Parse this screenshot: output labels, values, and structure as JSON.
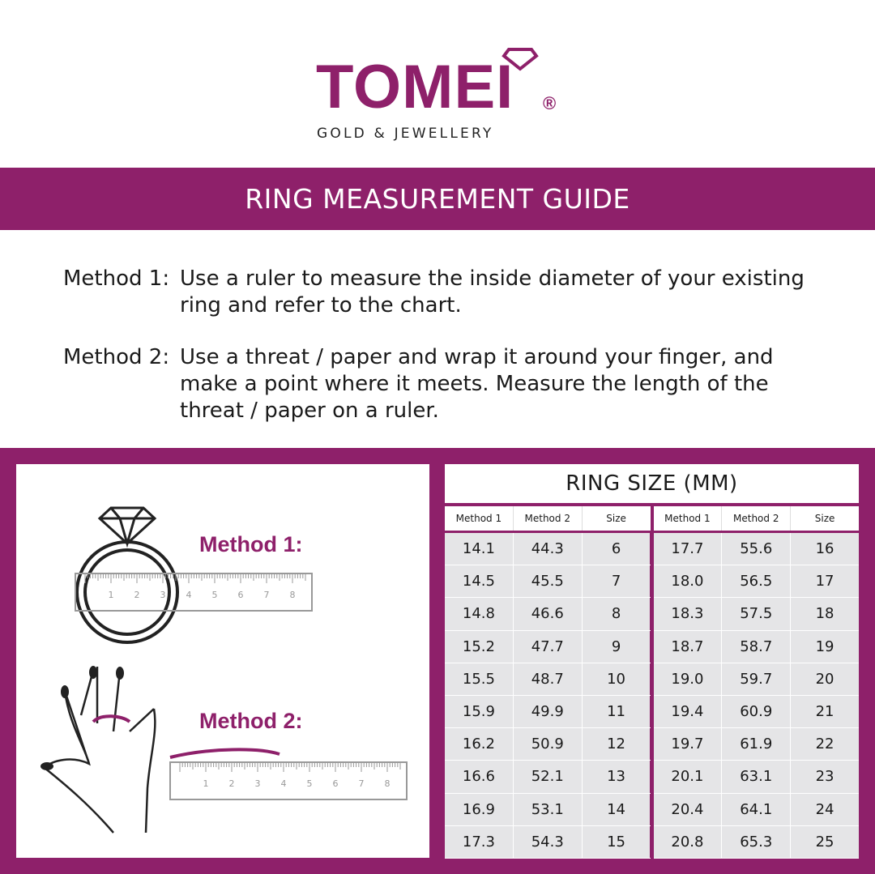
{
  "brand": {
    "name": "TOMEI",
    "registered": "®",
    "tagline": "GOLD & JEWELLERY",
    "color": "#8e206a"
  },
  "title": "RING MEASUREMENT GUIDE",
  "methods": [
    {
      "label": "Method 1:",
      "text": "Use a ruler to measure the inside diameter of your existing ring and refer to the chart."
    },
    {
      "label": "Method 2:",
      "text": "Use a threat / paper and wrap it around your finger, and make a point where it meets. Measure the length of the threat / paper on a ruler."
    }
  ],
  "illustration": {
    "method1_label": "Method 1:",
    "method2_label": "Method 2:",
    "ruler_labels": [
      "1",
      "2",
      "3",
      "4",
      "5",
      "6",
      "7",
      "8"
    ]
  },
  "table": {
    "title": "RING SIZE (MM)",
    "columns": [
      "Method 1",
      "Method 2",
      "Size"
    ],
    "left_rows": [
      [
        "14.1",
        "44.3",
        "6"
      ],
      [
        "14.5",
        "45.5",
        "7"
      ],
      [
        "14.8",
        "46.6",
        "8"
      ],
      [
        "15.2",
        "47.7",
        "9"
      ],
      [
        "15.5",
        "48.7",
        "10"
      ],
      [
        "15.9",
        "49.9",
        "11"
      ],
      [
        "16.2",
        "50.9",
        "12"
      ],
      [
        "16.6",
        "52.1",
        "13"
      ],
      [
        "16.9",
        "53.1",
        "14"
      ],
      [
        "17.3",
        "54.3",
        "15"
      ]
    ],
    "right_rows": [
      [
        "17.7",
        "55.6",
        "16"
      ],
      [
        "18.0",
        "56.5",
        "17"
      ],
      [
        "18.3",
        "57.5",
        "18"
      ],
      [
        "18.7",
        "58.7",
        "19"
      ],
      [
        "19.0",
        "59.7",
        "20"
      ],
      [
        "19.4",
        "60.9",
        "21"
      ],
      [
        "19.7",
        "61.9",
        "22"
      ],
      [
        "20.1",
        "63.1",
        "23"
      ],
      [
        "20.4",
        "64.1",
        "24"
      ],
      [
        "20.8",
        "65.3",
        "25"
      ]
    ]
  }
}
